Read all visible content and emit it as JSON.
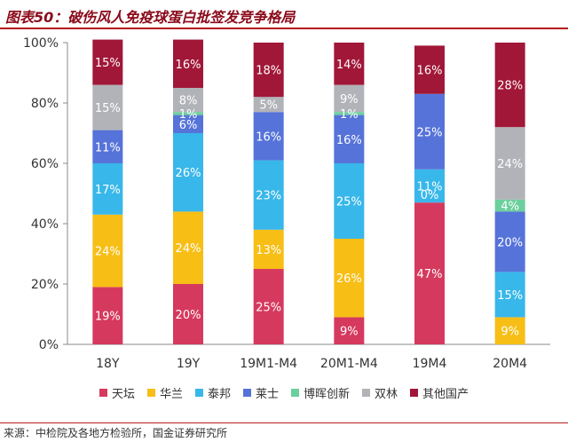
{
  "figure": {
    "title": "图表50：破伤风人免疫球蛋白批签发竞争格局",
    "source": "来源：中检院及各地方检验所，国金证券研究所"
  },
  "chart_data": {
    "type": "bar",
    "stacked": true,
    "categories": [
      "18Y",
      "19Y",
      "19M1-M4",
      "20M1-M4",
      "19M4",
      "20M4"
    ],
    "ylim": [
      0,
      100
    ],
    "yticks": [
      "0%",
      "20%",
      "40%",
      "60%",
      "80%",
      "100%"
    ],
    "legend_position": "bottom",
    "series": [
      {
        "name": "天坛",
        "color": "#d6395e",
        "values": [
          19,
          20,
          25,
          9,
          47,
          0
        ],
        "labels": [
          "19%",
          "20%",
          "25%",
          "9%",
          "47%",
          ""
        ]
      },
      {
        "name": "华兰",
        "color": "#f7be16",
        "values": [
          24,
          24,
          13,
          26,
          0,
          9
        ],
        "labels": [
          "24%",
          "24%",
          "13%",
          "26%",
          "",
          "9%"
        ]
      },
      {
        "name": "泰邦",
        "color": "#38b7ea",
        "values": [
          17,
          26,
          23,
          25,
          11,
          15
        ],
        "labels": [
          "17%",
          "26%",
          "23%",
          "25%",
          "11%",
          "15%"
        ]
      },
      {
        "name": "莱士",
        "color": "#5673d9",
        "values": [
          11,
          6,
          16,
          16,
          25,
          20
        ],
        "labels": [
          "11%",
          "6%",
          "16%",
          "16%",
          "25%",
          "20%"
        ]
      },
      {
        "name": "博晖创新",
        "color": "#6ccf9d",
        "values": [
          0,
          1,
          0,
          1,
          0,
          4
        ],
        "labels": [
          "",
          "1%",
          "",
          "1%",
          "",
          "4%"
        ]
      },
      {
        "name": "双林",
        "color": "#b1b3b8",
        "values": [
          15,
          8,
          5,
          9,
          0,
          24
        ],
        "labels": [
          "15%",
          "8%",
          "5%",
          "9%",
          "",
          "24%"
        ]
      },
      {
        "name": "其他国产",
        "color": "#a11738",
        "values": [
          15,
          16,
          18,
          14,
          16,
          28
        ],
        "labels": [
          "15%",
          "16%",
          "18%",
          "14%",
          "16%",
          "28%"
        ]
      }
    ],
    "extra_labels": [
      {
        "category_index": 4,
        "series_index": 1,
        "text": "0%"
      }
    ]
  }
}
